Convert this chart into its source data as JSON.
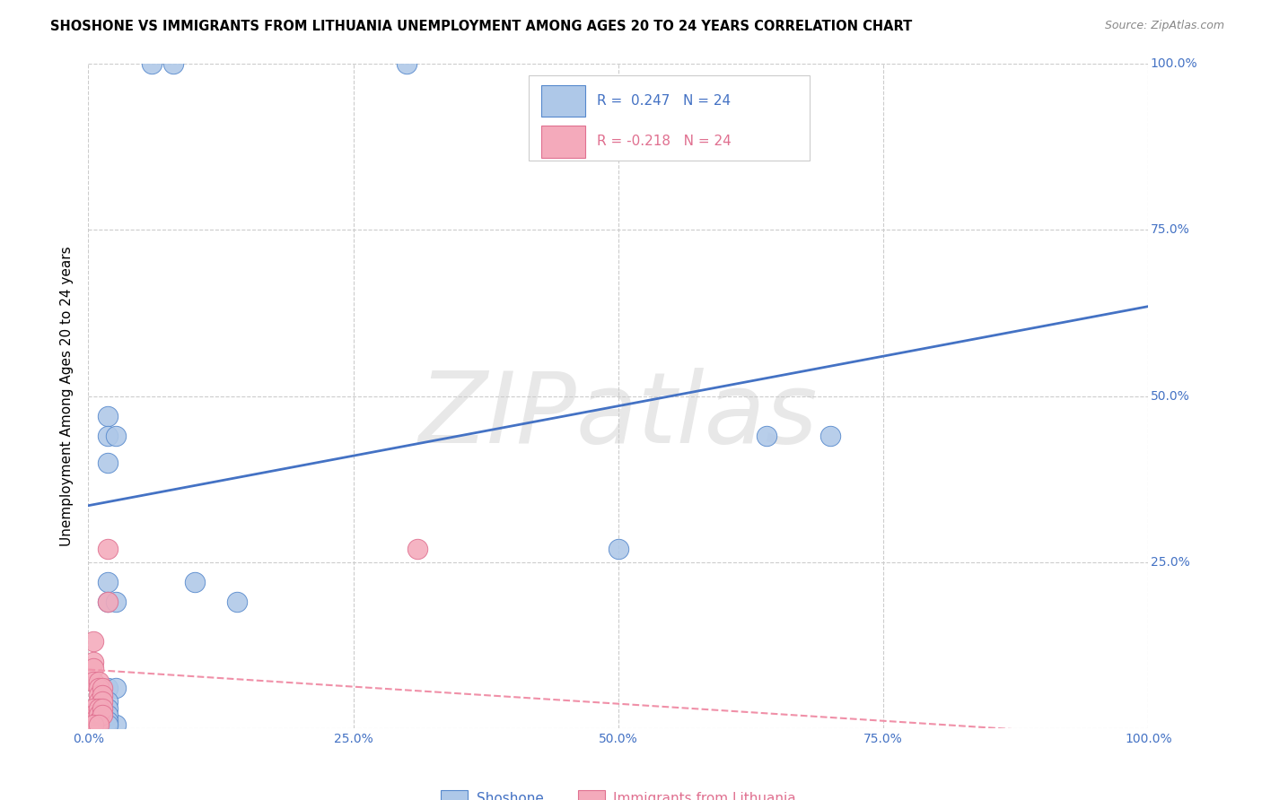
{
  "title": "SHOSHONE VS IMMIGRANTS FROM LITHUANIA UNEMPLOYMENT AMONG AGES 20 TO 24 YEARS CORRELATION CHART",
  "source": "Source: ZipAtlas.com",
  "ylabel": "Unemployment Among Ages 20 to 24 years",
  "watermark": "ZIPatlas",
  "shoshone_color": "#aec8e8",
  "shoshone_edge_color": "#5588cc",
  "lithuania_color": "#f4aabb",
  "lithuania_edge_color": "#e07090",
  "blue_line_color": "#4472c4",
  "pink_line_color": "#f090a8",
  "R_shoshone": "0.247",
  "N_shoshone": "24",
  "R_lithuania": "-0.218",
  "N_lithuania": "24",
  "legend_label_shoshone": "Shoshone",
  "legend_label_lithuania": "Immigrants from Lithuania",
  "ytick_labels_right": [
    "100.0%",
    "75.0%",
    "50.0%",
    "25.0%"
  ],
  "ytick_values": [
    0.0,
    0.25,
    0.5,
    0.75,
    1.0
  ],
  "xtick_labels": [
    "0.0%",
    "25.0%",
    "50.0%",
    "75.0%",
    "100.0%"
  ],
  "xtick_values": [
    0.0,
    0.25,
    0.5,
    0.75,
    1.0
  ],
  "shoshone_pts_x": [
    0.06,
    0.08,
    0.3,
    0.018,
    0.018,
    0.026,
    0.018,
    0.018,
    0.018,
    0.026,
    0.018,
    0.026,
    0.018,
    0.018,
    0.64,
    0.7,
    0.5,
    0.018,
    0.026,
    0.1,
    0.14,
    0.018,
    0.018,
    0.018
  ],
  "shoshone_pts_y": [
    1.0,
    1.0,
    1.0,
    0.47,
    0.44,
    0.44,
    0.4,
    0.22,
    0.19,
    0.19,
    0.06,
    0.06,
    0.04,
    0.03,
    0.44,
    0.44,
    0.27,
    0.005,
    0.005,
    0.22,
    0.19,
    0.02,
    0.01,
    0.005
  ],
  "lithuania_pts_x": [
    0.018,
    0.018,
    0.005,
    0.005,
    0.005,
    0.005,
    0.01,
    0.01,
    0.01,
    0.01,
    0.013,
    0.013,
    0.013,
    0.005,
    0.005,
    0.005,
    0.01,
    0.01,
    0.01,
    0.013,
    0.013,
    0.31,
    0.005,
    0.01
  ],
  "lithuania_pts_y": [
    0.27,
    0.19,
    0.13,
    0.1,
    0.09,
    0.07,
    0.07,
    0.06,
    0.05,
    0.04,
    0.06,
    0.05,
    0.04,
    0.03,
    0.02,
    0.01,
    0.03,
    0.02,
    0.01,
    0.03,
    0.02,
    0.27,
    0.005,
    0.005
  ],
  "blue_line_y0": 0.335,
  "blue_line_y1": 0.635,
  "pink_line_y0": 0.088,
  "pink_line_y1": -0.015
}
